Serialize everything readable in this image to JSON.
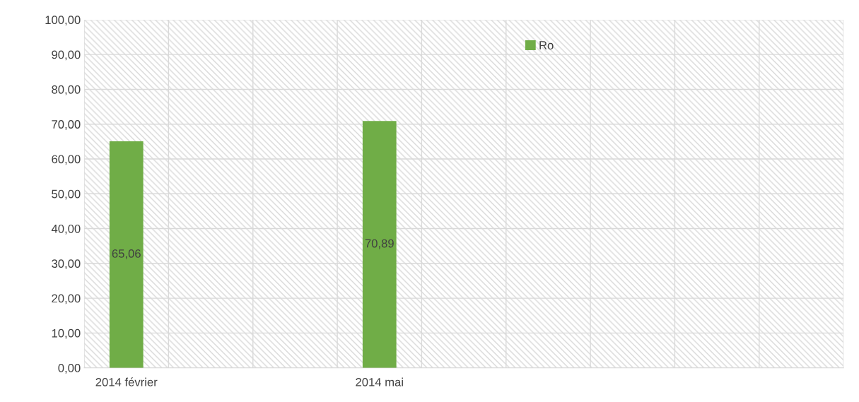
{
  "chart_data": {
    "type": "bar",
    "categories": [
      "2014 février",
      null,
      null,
      "2014 mai",
      null,
      null,
      null,
      null,
      null
    ],
    "series": [
      {
        "name": "Ro",
        "color": "#70ad47",
        "values": [
          65.06,
          null,
          null,
          70.89,
          null,
          null,
          null,
          null,
          null
        ],
        "value_labels": [
          "65,06",
          null,
          null,
          "70,89",
          null,
          null,
          null,
          null,
          null
        ]
      }
    ],
    "ylim": [
      0,
      100
    ],
    "yticks": [
      {
        "value": 0,
        "label": "0,00"
      },
      {
        "value": 10,
        "label": "10,00"
      },
      {
        "value": 20,
        "label": "20,00"
      },
      {
        "value": 30,
        "label": "30,00"
      },
      {
        "value": 40,
        "label": "40,00"
      },
      {
        "value": 50,
        "label": "50,00"
      },
      {
        "value": 60,
        "label": "60,00"
      },
      {
        "value": 70,
        "label": "70,00"
      },
      {
        "value": 80,
        "label": "80,00"
      },
      {
        "value": 90,
        "label": "90,00"
      },
      {
        "value": 100,
        "label": "100,00"
      }
    ],
    "grid": true,
    "legend": "top"
  }
}
